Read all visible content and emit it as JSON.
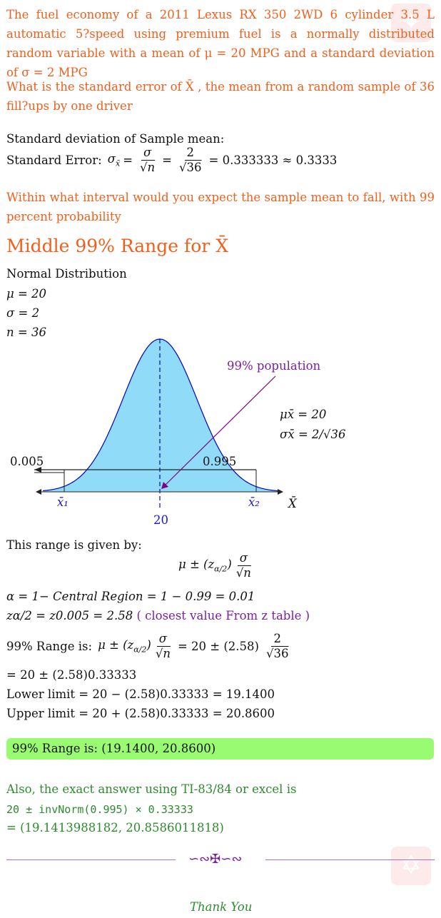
{
  "problem": {
    "intro": "The fuel economy of a 2011 Lexus RX 350 2WD 6 cylinder 3.5 L automatic 5?speed using premium fuel is a normally distributed random variable with a mean of μ = 20 MPG and a standard deviation of σ = 2 MPG",
    "q1": "What is the standard error of X̄ , the mean from a random sample of 36 fill?ups by one driver",
    "q2": "Within what interval would you expect the sample mean to fall, with 99 percent probability"
  },
  "se": {
    "heading": "Standard deviation of Sample mean:",
    "label": "Standard Error:",
    "result": "= 0.333333 ≈ 0.3333"
  },
  "section_title": "Middle 99% Range for X̄",
  "given": {
    "dist": "Normal Distribution",
    "mu": "μ = 20",
    "sigma": "σ = 2",
    "n": "n = 36"
  },
  "figure": {
    "pop_label": "99% population",
    "mu_xbar": "μx̄ = 20",
    "sigma_xbar": "σx̄ = 2/√36",
    "left_tail": "0.005",
    "middle": "0.995",
    "x1": "x̄₁",
    "x2": "x̄₂",
    "axis": "X̄",
    "center": "20"
  },
  "range": {
    "intro": "This range is given by:",
    "alpha": "α = 1− Central Region = 1 − 0.99 = 0.01",
    "z": "zα/2 = z0.005 = 2.58",
    "z_note": "( closest value From z table )",
    "label": "99% Range is:",
    "step": "= 20 ± (2.58)0.33333",
    "lower": "Lower limit = 20 − (2.58)0.33333 = 19.1400",
    "upper": "Upper limit = 20 + (2.58)0.33333 = 20.8600",
    "final": "99% Range is:  (19.1400, 20.8600)"
  },
  "exact": {
    "intro": "Also, the exact answer using TI-83/84 or excel is",
    "expr": "20 ± invNorm(0.995) × 0.33333",
    "result": "= (19.1413988182, 20.8586011818)"
  },
  "footer": {
    "ornament": "∽∾✠∽∾",
    "thanks": "Thank You"
  },
  "colors": {
    "question": "#f0601c",
    "curve_fill": "#90dcf8",
    "curve_line": "#0000cc",
    "arrow": "#800080",
    "highlight": "#99fb71",
    "exact": "#2e8b2e"
  }
}
